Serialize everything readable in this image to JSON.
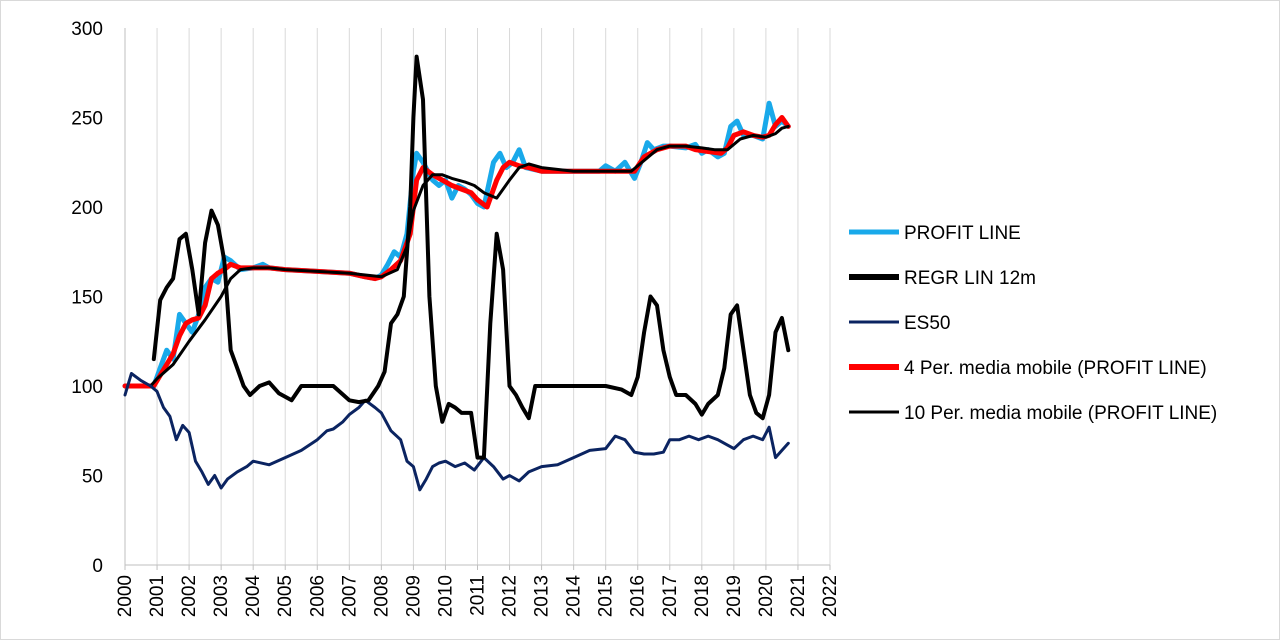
{
  "colors": {
    "profit_line": "#19a9ea",
    "regr_lin_12m": "#000000",
    "es50": "#0b2461",
    "ma4": "#ff0000",
    "ma10": "#000000",
    "grid": "#d9d9d9",
    "axis": "#bfbfbf"
  },
  "chart_data": {
    "type": "line",
    "title": "",
    "xlabel": "",
    "ylabel": "",
    "xlim": [
      2000,
      2022
    ],
    "ylim": [
      0,
      300
    ],
    "grid": "vertical",
    "legend_position": "right",
    "x_ticks": [
      "2000",
      "2001",
      "2002",
      "2003",
      "2004",
      "2005",
      "2006",
      "2007",
      "2008",
      "2009",
      "2010",
      "2011",
      "2012",
      "2013",
      "2014",
      "2015",
      "2016",
      "2017",
      "2018",
      "2019",
      "2020",
      "2021",
      "2022"
    ],
    "y_ticks": [
      "0",
      "50",
      "100",
      "150",
      "200",
      "250",
      "300"
    ],
    "series": [
      {
        "name": "PROFIT LINE",
        "x": [
          2000.0,
          2000.5,
          2000.9,
          2001.1,
          2001.3,
          2001.5,
          2001.7,
          2001.9,
          2002.1,
          2002.3,
          2002.5,
          2002.7,
          2002.9,
          2003.1,
          2003.3,
          2003.6,
          2004.0,
          2004.3,
          2004.5,
          2005.0,
          2006.0,
          2007.0,
          2007.5,
          2007.8,
          2008.0,
          2008.2,
          2008.4,
          2008.6,
          2008.8,
          2009.0,
          2009.1,
          2009.3,
          2009.6,
          2009.8,
          2010.0,
          2010.2,
          2010.4,
          2010.6,
          2010.8,
          2011.0,
          2011.2,
          2011.5,
          2011.7,
          2011.9,
          2012.1,
          2012.3,
          2012.5,
          2013.0,
          2014.0,
          2014.8,
          2015.0,
          2015.3,
          2015.6,
          2015.9,
          2016.1,
          2016.3,
          2016.5,
          2016.8,
          2017.0,
          2017.5,
          2017.8,
          2018.0,
          2018.2,
          2018.5,
          2018.7,
          2018.9,
          2019.1,
          2019.3,
          2019.6,
          2019.9,
          2020.1,
          2020.3,
          2020.5,
          2020.7
        ],
        "values": [
          100,
          100,
          100,
          110,
          120,
          115,
          140,
          135,
          130,
          140,
          155,
          160,
          158,
          172,
          170,
          165,
          166,
          168,
          166,
          165,
          164,
          163,
          161,
          160,
          162,
          168,
          175,
          172,
          185,
          220,
          230,
          225,
          215,
          212,
          215,
          205,
          212,
          210,
          207,
          202,
          200,
          225,
          230,
          222,
          225,
          232,
          222,
          220,
          220,
          220,
          223,
          220,
          225,
          216,
          225,
          236,
          232,
          234,
          234,
          233,
          235,
          230,
          232,
          228,
          230,
          245,
          248,
          240,
          240,
          238,
          258,
          245,
          248,
          245
        ]
      },
      {
        "name": "REGR LIN 12m",
        "x": [
          2000.9,
          2001.1,
          2001.3,
          2001.5,
          2001.7,
          2001.9,
          2002.1,
          2002.3,
          2002.5,
          2002.7,
          2002.9,
          2003.1,
          2003.3,
          2003.5,
          2003.7,
          2003.9,
          2004.2,
          2004.5,
          2004.8,
          2005.2,
          2005.5,
          2006.0,
          2006.5,
          2007.0,
          2007.3,
          2007.6,
          2007.9,
          2008.1,
          2008.3,
          2008.5,
          2008.7,
          2008.9,
          2009.0,
          2009.1,
          2009.3,
          2009.5,
          2009.7,
          2009.9,
          2010.1,
          2010.3,
          2010.5,
          2010.8,
          2011.0,
          2011.2,
          2011.4,
          2011.6,
          2011.8,
          2012.0,
          2012.2,
          2012.4,
          2012.6,
          2012.8,
          2013.0,
          2013.3,
          2013.6,
          2014.0,
          2014.5,
          2015.0,
          2015.5,
          2015.8,
          2016.0,
          2016.2,
          2016.4,
          2016.6,
          2016.8,
          2017.0,
          2017.2,
          2017.5,
          2017.8,
          2018.0,
          2018.2,
          2018.5,
          2018.7,
          2018.9,
          2019.1,
          2019.3,
          2019.5,
          2019.7,
          2019.9,
          2020.1,
          2020.3,
          2020.5,
          2020.7
        ],
        "values": [
          115,
          148,
          155,
          160,
          182,
          185,
          165,
          140,
          180,
          198,
          190,
          170,
          120,
          110,
          100,
          95,
          100,
          102,
          96,
          92,
          100,
          100,
          100,
          92,
          91,
          92,
          100,
          108,
          135,
          140,
          150,
          200,
          250,
          284,
          260,
          150,
          100,
          80,
          90,
          88,
          85,
          85,
          60,
          60,
          135,
          185,
          165,
          100,
          95,
          88,
          82,
          100,
          100,
          100,
          100,
          100,
          100,
          100,
          98,
          95,
          105,
          130,
          150,
          145,
          120,
          105,
          95,
          95,
          90,
          84,
          90,
          95,
          110,
          140,
          145,
          120,
          95,
          85,
          82,
          95,
          130,
          138,
          120
        ]
      },
      {
        "name": "ES50",
        "x": [
          2000.0,
          2000.2,
          2000.5,
          2000.8,
          2001.0,
          2001.2,
          2001.4,
          2001.6,
          2001.8,
          2002.0,
          2002.2,
          2002.4,
          2002.6,
          2002.8,
          2003.0,
          2003.2,
          2003.5,
          2003.8,
          2004.0,
          2004.5,
          2005.0,
          2005.5,
          2006.0,
          2006.3,
          2006.5,
          2006.8,
          2007.0,
          2007.3,
          2007.5,
          2007.8,
          2008.0,
          2008.3,
          2008.6,
          2008.8,
          2009.0,
          2009.2,
          2009.4,
          2009.6,
          2009.8,
          2010.0,
          2010.3,
          2010.6,
          2010.9,
          2011.2,
          2011.5,
          2011.8,
          2012.0,
          2012.3,
          2012.6,
          2013.0,
          2013.5,
          2014.0,
          2014.5,
          2015.0,
          2015.3,
          2015.6,
          2015.9,
          2016.2,
          2016.5,
          2016.8,
          2017.0,
          2017.3,
          2017.6,
          2017.9,
          2018.2,
          2018.5,
          2018.8,
          2019.0,
          2019.3,
          2019.6,
          2019.9,
          2020.1,
          2020.3,
          2020.5,
          2020.7
        ],
        "values": [
          95,
          107,
          103,
          100,
          97,
          88,
          83,
          70,
          78,
          74,
          58,
          52,
          45,
          50,
          43,
          48,
          52,
          55,
          58,
          56,
          60,
          64,
          70,
          75,
          76,
          80,
          84,
          88,
          92,
          88,
          85,
          75,
          70,
          58,
          55,
          42,
          48,
          55,
          57,
          58,
          55,
          57,
          53,
          60,
          55,
          48,
          50,
          47,
          52,
          55,
          56,
          60,
          64,
          65,
          72,
          70,
          63,
          62,
          62,
          63,
          70,
          70,
          72,
          70,
          72,
          70,
          67,
          65,
          70,
          72,
          70,
          77,
          60,
          64,
          68
        ]
      },
      {
        "name": "4 Per. media mobile (PROFIT LINE)",
        "x": [
          2000.0,
          2000.5,
          2000.9,
          2001.1,
          2001.3,
          2001.5,
          2001.7,
          2001.9,
          2002.1,
          2002.3,
          2002.5,
          2002.7,
          2002.9,
          2003.1,
          2003.3,
          2003.6,
          2004.0,
          2004.5,
          2005.0,
          2006.0,
          2007.0,
          2007.5,
          2007.8,
          2008.0,
          2008.3,
          2008.6,
          2008.9,
          2009.1,
          2009.3,
          2009.6,
          2009.9,
          2010.2,
          2010.5,
          2010.8,
          2011.0,
          2011.3,
          2011.6,
          2011.8,
          2012.0,
          2012.3,
          2012.6,
          2013.0,
          2014.0,
          2015.0,
          2015.6,
          2015.9,
          2016.2,
          2016.6,
          2017.0,
          2017.5,
          2017.8,
          2018.2,
          2018.6,
          2018.8,
          2019.0,
          2019.3,
          2019.6,
          2019.9,
          2020.1,
          2020.3,
          2020.5,
          2020.7
        ],
        "values": [
          100,
          100,
          100,
          106,
          112,
          118,
          128,
          135,
          137,
          138,
          145,
          160,
          163,
          165,
          168,
          166,
          166,
          166,
          165,
          164,
          163,
          161,
          160,
          161,
          165,
          170,
          185,
          215,
          222,
          218,
          215,
          212,
          210,
          208,
          204,
          200,
          215,
          222,
          225,
          223,
          222,
          220,
          220,
          220,
          220,
          220,
          228,
          232,
          234,
          234,
          232,
          231,
          230,
          233,
          240,
          242,
          240,
          239,
          240,
          246,
          250,
          245
        ]
      },
      {
        "name": "10 Per. media mobile (PROFIT LINE)",
        "x": [
          2000.8,
          2001.0,
          2001.5,
          2002.0,
          2002.5,
          2003.0,
          2003.3,
          2003.6,
          2004.0,
          2004.5,
          2005.0,
          2006.0,
          2007.0,
          2007.5,
          2008.0,
          2008.5,
          2008.8,
          2009.0,
          2009.3,
          2009.6,
          2009.9,
          2010.2,
          2010.6,
          2010.9,
          2011.2,
          2011.6,
          2012.0,
          2012.3,
          2012.6,
          2013.0,
          2014.0,
          2015.0,
          2015.8,
          2016.2,
          2016.6,
          2017.0,
          2017.5,
          2018.0,
          2018.4,
          2018.8,
          2019.2,
          2019.6,
          2020.0,
          2020.3,
          2020.5,
          2020.7
        ],
        "values": [
          100,
          104,
          112,
          125,
          137,
          150,
          160,
          165,
          166,
          166,
          165,
          164,
          163,
          162,
          161,
          165,
          178,
          198,
          212,
          218,
          218,
          216,
          214,
          212,
          208,
          205,
          215,
          222,
          224,
          222,
          220,
          220,
          220,
          226,
          232,
          234,
          234,
          233,
          232,
          232,
          238,
          240,
          239,
          241,
          244,
          245
        ]
      }
    ]
  }
}
